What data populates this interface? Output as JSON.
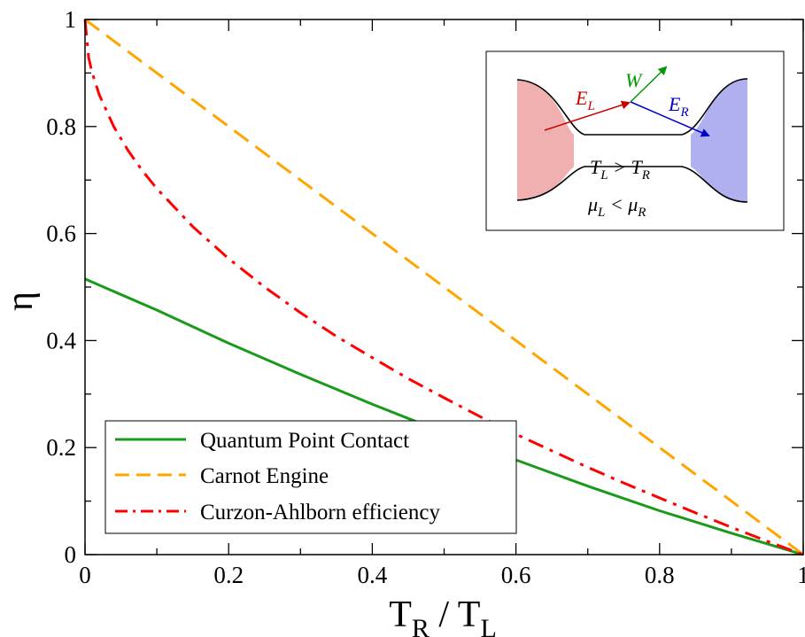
{
  "chart_data": {
    "type": "line",
    "title": "",
    "xlabel": "T",
    "xlabel_sub1": "R",
    "xlabel_sep": " / T",
    "xlabel_sub2": "L",
    "ylabel": "η",
    "xlim": [
      0,
      1
    ],
    "ylim": [
      0,
      1
    ],
    "x_ticks": [
      0,
      0.2,
      0.4,
      0.6,
      0.8,
      1
    ],
    "x_tick_labels": [
      "0",
      "0.2",
      "0.4",
      "0.6",
      "0.8",
      "1"
    ],
    "y_ticks": [
      0,
      0.2,
      0.4,
      0.6,
      0.8,
      1
    ],
    "y_tick_labels": [
      "0",
      "0.2",
      "0.4",
      "0.6",
      "0.8",
      "1"
    ],
    "grid": false,
    "legend_position": "bottom-left",
    "series": [
      {
        "name": "Quantum Point Contact",
        "color": "#1a9a1a",
        "dash": "solid",
        "x": [
          0,
          0.1,
          0.2,
          0.3,
          0.4,
          0.5,
          0.6,
          0.7,
          0.8,
          0.9,
          1.0
        ],
        "y": [
          0.515,
          0.457,
          0.395,
          0.337,
          0.281,
          0.228,
          0.177,
          0.128,
          0.082,
          0.04,
          0.0
        ]
      },
      {
        "name": "Carnot Engine",
        "color": "#ffa500",
        "dash": "dashed",
        "x": [
          0,
          1
        ],
        "y": [
          1,
          0
        ]
      },
      {
        "name": "Curzon-Ahlborn efficiency",
        "color": "#ff0000",
        "dash": "dash-dot",
        "x": [
          0,
          0.005,
          0.01,
          0.02,
          0.04,
          0.06,
          0.08,
          0.1,
          0.15,
          0.2,
          0.25,
          0.3,
          0.35,
          0.4,
          0.45,
          0.5,
          0.55,
          0.6,
          0.65,
          0.7,
          0.75,
          0.8,
          0.85,
          0.9,
          0.95,
          1.0
        ],
        "y": [
          1,
          0.929,
          0.9,
          0.859,
          0.8,
          0.755,
          0.717,
          0.684,
          0.613,
          0.553,
          0.5,
          0.452,
          0.408,
          0.368,
          0.329,
          0.293,
          0.258,
          0.225,
          0.194,
          0.163,
          0.134,
          0.106,
          0.078,
          0.051,
          0.025,
          0.0
        ]
      }
    ],
    "inset": {
      "label_EL": "E",
      "label_EL_sub": "L",
      "label_W": "W",
      "label_ER": "E",
      "label_ER_sub": "R",
      "temp_relation": "T",
      "temp_sub1": "L",
      "temp_op": " > T",
      "temp_sub2": "R",
      "mu_relation": "μ",
      "mu_sub1": "L",
      "mu_op": " < μ",
      "mu_sub2": "R",
      "left_reservoir_color": "#f0b0b0",
      "right_reservoir_color": "#b0b0f0",
      "EL_color": "#cc0000",
      "W_color": "#009900",
      "ER_color": "#0000cc"
    }
  }
}
